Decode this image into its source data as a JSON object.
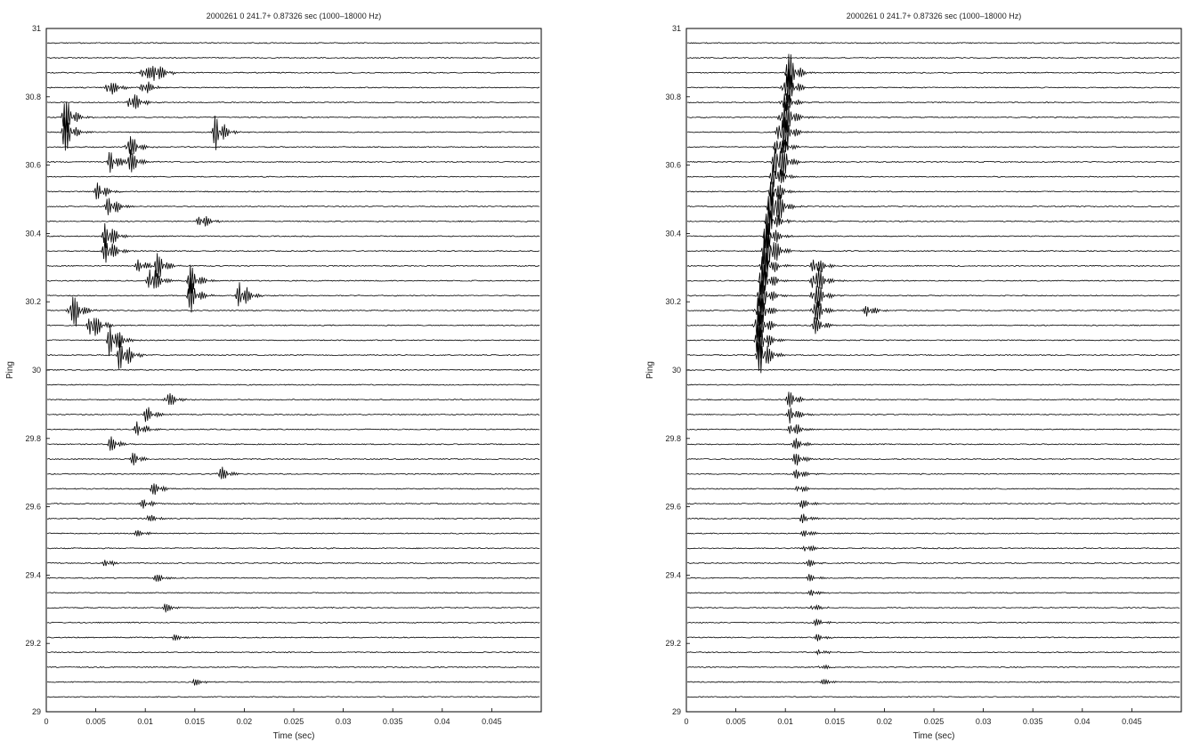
{
  "chart_data": [
    {
      "type": "line",
      "title": "2000261 0        241.7+ 0.87326 sec (1000–18000 Hz)",
      "xlabel": "Time (sec)",
      "ylabel": "Ping",
      "xlim": [
        0,
        0.05
      ],
      "ylim": [
        29,
        31
      ],
      "xticks": [
        "0",
        "0.005",
        "0.01",
        "0.015",
        "0.02",
        "0.025",
        "0.03",
        "0.035",
        "0.04",
        "0.045"
      ],
      "xtick_values": [
        0,
        0.005,
        0.01,
        0.015,
        0.02,
        0.025,
        0.03,
        0.035,
        0.04,
        0.045
      ],
      "yticks": [
        "29",
        "29.2",
        "29.4",
        "29.6",
        "29.8",
        "30",
        "30.2",
        "30.4",
        "30.6",
        "30.8",
        "31"
      ],
      "ytick_values": [
        29,
        29.2,
        29.4,
        29.6,
        29.8,
        30,
        30.2,
        30.4,
        30.6,
        30.8,
        31
      ],
      "trace_spacing": 0.0435,
      "events": [
        {
          "ping": 30.89,
          "t": 0.011,
          "amp": 1.2
        },
        {
          "ping": 30.85,
          "t": 0.0098,
          "amp": 1.0
        },
        {
          "ping": 30.81,
          "t": 0.0063,
          "amp": 1.1
        },
        {
          "ping": 30.78,
          "t": 0.0085,
          "amp": 1.4
        },
        {
          "ping": 30.72,
          "t": 0.0018,
          "amp": 2.3
        },
        {
          "ping": 30.68,
          "t": 0.0171,
          "amp": 2.0
        },
        {
          "ping": 30.63,
          "t": 0.0083,
          "amp": 1.6
        },
        {
          "ping": 30.59,
          "t": 0.0065,
          "amp": 1.3
        },
        {
          "ping": 30.54,
          "t": 0.0052,
          "amp": 1.2
        },
        {
          "ping": 30.49,
          "t": 0.0063,
          "amp": 1.4
        },
        {
          "ping": 30.42,
          "t": 0.0155,
          "amp": 1.0
        },
        {
          "ping": 30.37,
          "t": 0.006,
          "amp": 1.8
        },
        {
          "ping": 30.32,
          "t": 0.0093,
          "amp": 0.8
        },
        {
          "ping": 30.29,
          "t": 0.0112,
          "amp": 1.5
        },
        {
          "ping": 30.25,
          "t": 0.0105,
          "amp": 2.0
        },
        {
          "ping": 30.24,
          "t": 0.0145,
          "amp": 1.8
        },
        {
          "ping": 30.21,
          "t": 0.0195,
          "amp": 1.8
        },
        {
          "ping": 30.17,
          "t": 0.0025,
          "amp": 2.4
        },
        {
          "ping": 30.14,
          "t": 0.0045,
          "amp": 2.0
        },
        {
          "ping": 30.1,
          "t": 0.0065,
          "amp": 2.5
        },
        {
          "ping": 30.06,
          "t": 0.0075,
          "amp": 2.2
        },
        {
          "ping": 29.92,
          "t": 0.0122,
          "amp": 1.1
        },
        {
          "ping": 29.88,
          "t": 0.01,
          "amp": 1.0
        },
        {
          "ping": 29.83,
          "t": 0.0092,
          "amp": 0.9
        },
        {
          "ping": 29.79,
          "t": 0.0065,
          "amp": 0.9
        },
        {
          "ping": 29.74,
          "t": 0.0088,
          "amp": 0.7
        },
        {
          "ping": 29.7,
          "t": 0.0175,
          "amp": 0.9
        },
        {
          "ping": 29.66,
          "t": 0.0108,
          "amp": 0.7
        },
        {
          "ping": 29.62,
          "t": 0.0098,
          "amp": 0.6
        },
        {
          "ping": 29.57,
          "t": 0.0102,
          "amp": 0.5
        },
        {
          "ping": 29.53,
          "t": 0.009,
          "amp": 0.5
        },
        {
          "ping": 29.44,
          "t": 0.006,
          "amp": 0.5
        },
        {
          "ping": 29.4,
          "t": 0.011,
          "amp": 0.5
        },
        {
          "ping": 29.31,
          "t": 0.012,
          "amp": 0.5
        },
        {
          "ping": 29.23,
          "t": 0.0128,
          "amp": 0.4
        },
        {
          "ping": 29.1,
          "t": 0.015,
          "amp": 0.4
        }
      ]
    },
    {
      "type": "line",
      "title": "2000261 0        241.7+ 0.87326 sec (1000–18000 Hz)",
      "xlabel": "Time (sec)",
      "ylabel": "Ping",
      "xlim": [
        0,
        0.05
      ],
      "ylim": [
        29,
        31
      ],
      "xticks": [
        "0",
        "0.005",
        "0.01",
        "0.015",
        "0.02",
        "0.025",
        "0.03",
        "0.035",
        "0.04",
        "0.045"
      ],
      "xtick_values": [
        0,
        0.005,
        0.01,
        0.015,
        0.02,
        0.025,
        0.03,
        0.035,
        0.04,
        0.045
      ],
      "yticks": [
        "29",
        "29.2",
        "29.4",
        "29.6",
        "29.8",
        "30",
        "30.2",
        "30.4",
        "30.6",
        "30.8",
        "31"
      ],
      "ytick_values": [
        29,
        29.2,
        29.4,
        29.6,
        29.8,
        30,
        30.2,
        30.4,
        30.6,
        30.8,
        31
      ],
      "trace_spacing": 0.0435,
      "events": [
        {
          "ping": 30.89,
          "t": 0.0103,
          "amp": 1.3
        },
        {
          "ping": 30.85,
          "t": 0.0101,
          "amp": 1.3
        },
        {
          "ping": 30.81,
          "t": 0.0099,
          "amp": 1.4
        },
        {
          "ping": 30.76,
          "t": 0.0098,
          "amp": 1.5
        },
        {
          "ping": 30.72,
          "t": 0.0096,
          "amp": 1.5
        },
        {
          "ping": 30.68,
          "t": 0.0094,
          "amp": 1.6
        },
        {
          "ping": 30.63,
          "t": 0.0092,
          "amp": 1.7
        },
        {
          "ping": 30.59,
          "t": 0.009,
          "amp": 1.7
        },
        {
          "ping": 30.55,
          "t": 0.0088,
          "amp": 1.8
        },
        {
          "ping": 30.5,
          "t": 0.0087,
          "amp": 1.8
        },
        {
          "ping": 30.46,
          "t": 0.0085,
          "amp": 1.9
        },
        {
          "ping": 30.42,
          "t": 0.0083,
          "amp": 1.9
        },
        {
          "ping": 30.37,
          "t": 0.0081,
          "amp": 2.0
        },
        {
          "ping": 30.33,
          "t": 0.0079,
          "amp": 2.0
        },
        {
          "ping": 30.29,
          "t": 0.0078,
          "amp": 2.1
        },
        {
          "ping": 30.25,
          "t": 0.0076,
          "amp": 2.1
        },
        {
          "ping": 30.21,
          "t": 0.0074,
          "amp": 2.2
        },
        {
          "ping": 30.17,
          "t": 0.0072,
          "amp": 2.3
        },
        {
          "ping": 30.13,
          "t": 0.0071,
          "amp": 2.4
        },
        {
          "ping": 30.09,
          "t": 0.0072,
          "amp": 2.6
        },
        {
          "ping": 30.05,
          "t": 0.0074,
          "amp": 2.5
        },
        {
          "ping": 30.29,
          "t": 0.0129,
          "amp": 1.4
        },
        {
          "ping": 30.25,
          "t": 0.0129,
          "amp": 2.0
        },
        {
          "ping": 30.21,
          "t": 0.0129,
          "amp": 1.8
        },
        {
          "ping": 30.17,
          "t": 0.0129,
          "amp": 1.7
        },
        {
          "ping": 30.13,
          "t": 0.0129,
          "amp": 1.2
        },
        {
          "ping": 30.17,
          "t": 0.0182,
          "amp": 0.8
        },
        {
          "ping": 29.92,
          "t": 0.0104,
          "amp": 1.1
        },
        {
          "ping": 29.88,
          "t": 0.0105,
          "amp": 1.0
        },
        {
          "ping": 29.83,
          "t": 0.0106,
          "amp": 0.9
        },
        {
          "ping": 29.79,
          "t": 0.0108,
          "amp": 0.8
        },
        {
          "ping": 29.74,
          "t": 0.011,
          "amp": 0.7
        },
        {
          "ping": 29.7,
          "t": 0.0111,
          "amp": 0.7
        },
        {
          "ping": 29.66,
          "t": 0.0113,
          "amp": 0.6
        },
        {
          "ping": 29.62,
          "t": 0.0115,
          "amp": 0.6
        },
        {
          "ping": 29.57,
          "t": 0.0117,
          "amp": 0.5
        },
        {
          "ping": 29.53,
          "t": 0.0119,
          "amp": 0.5
        },
        {
          "ping": 29.49,
          "t": 0.012,
          "amp": 0.5
        },
        {
          "ping": 29.44,
          "t": 0.0122,
          "amp": 0.5
        },
        {
          "ping": 29.4,
          "t": 0.0124,
          "amp": 0.4
        },
        {
          "ping": 29.36,
          "t": 0.0126,
          "amp": 0.4
        },
        {
          "ping": 29.31,
          "t": 0.0128,
          "amp": 0.4
        },
        {
          "ping": 29.27,
          "t": 0.013,
          "amp": 0.4
        },
        {
          "ping": 29.23,
          "t": 0.0132,
          "amp": 0.4
        },
        {
          "ping": 29.19,
          "t": 0.0134,
          "amp": 0.3
        },
        {
          "ping": 29.14,
          "t": 0.0136,
          "amp": 0.3
        },
        {
          "ping": 29.1,
          "t": 0.0138,
          "amp": 0.3
        }
      ]
    }
  ]
}
